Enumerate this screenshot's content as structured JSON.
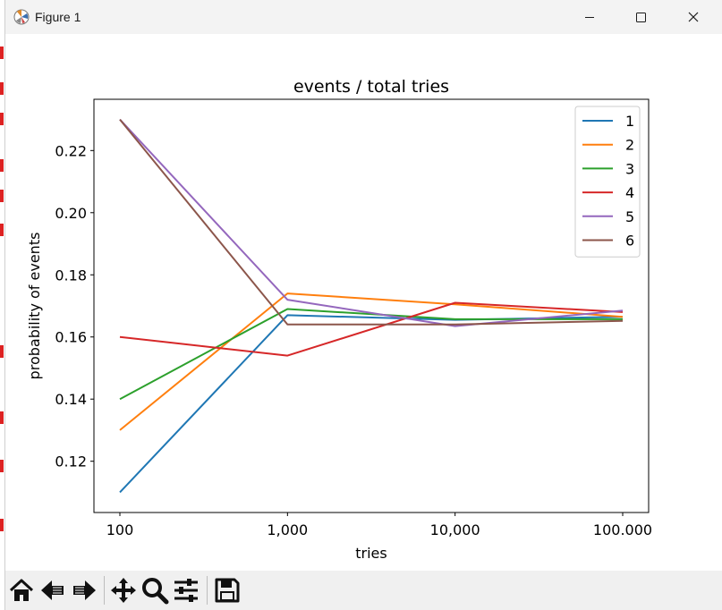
{
  "window": {
    "title": "Figure 1",
    "controls": {
      "minimize": "minimize",
      "maximize": "maximize",
      "close": "close"
    }
  },
  "toolbar": {
    "buttons": [
      "home-icon",
      "back-icon",
      "forward-icon",
      "pan-icon",
      "zoom-icon",
      "configure-subplots-icon",
      "save-icon"
    ]
  },
  "chart_data": {
    "type": "line",
    "title": "events / total tries",
    "xlabel": "tries",
    "ylabel": "probability of events",
    "categories": [
      "100",
      "1,000",
      "10,000",
      "100.000"
    ],
    "yticks": [
      "0.12",
      "0.14",
      "0.16",
      "0.18",
      "0.20",
      "0.22"
    ],
    "ylim": [
      0.1035,
      0.2365
    ],
    "legend_position": "upper right",
    "series": [
      {
        "name": "1",
        "color": "#1f77b4",
        "values": [
          0.11,
          0.167,
          0.1655,
          0.1665
        ]
      },
      {
        "name": "2",
        "color": "#ff7f0e",
        "values": [
          0.13,
          0.174,
          0.1705,
          0.1665
        ]
      },
      {
        "name": "3",
        "color": "#2ca02c",
        "values": [
          0.14,
          0.169,
          0.1657,
          0.1657
        ]
      },
      {
        "name": "4",
        "color": "#d62728",
        "values": [
          0.16,
          0.154,
          0.171,
          0.168
        ]
      },
      {
        "name": "5",
        "color": "#9467bd",
        "values": [
          0.23,
          0.172,
          0.1635,
          0.1685
        ]
      },
      {
        "name": "6",
        "color": "#8c564b",
        "values": [
          0.23,
          0.164,
          0.164,
          0.1652
        ]
      }
    ]
  }
}
